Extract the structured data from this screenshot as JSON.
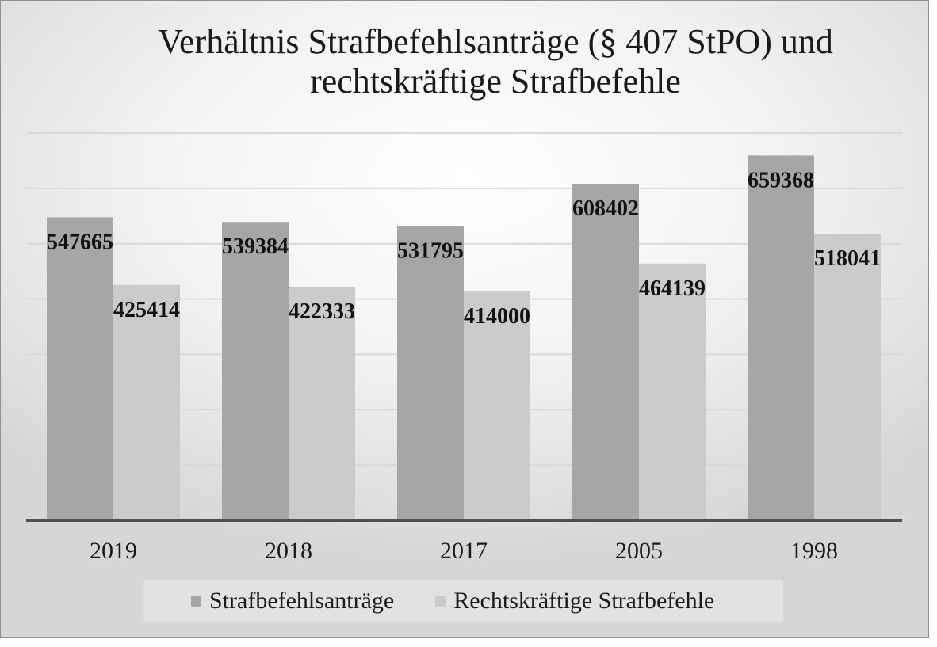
{
  "chart_data": {
    "type": "bar",
    "title": [
      "Verhältnis Strafbefehlsanträge (§ 407 StPO) und",
      "rechtskräftige Strafbefehle"
    ],
    "categories": [
      "2019",
      "2018",
      "2017",
      "2005",
      "1998"
    ],
    "series": [
      {
        "name": "Strafbefehlsanträge",
        "values": [
          547665,
          539384,
          531795,
          608402,
          659368
        ],
        "color": "#a6a6a6"
      },
      {
        "name": "Rechtskräftige Strafbefehle",
        "values": [
          425414,
          422333,
          414000,
          464139,
          518041
        ],
        "color": "#cbcbcb"
      }
    ],
    "xlabel": "",
    "ylabel": "",
    "ylim": [
      0,
      700000
    ],
    "grid": true,
    "legend": "bottom",
    "data_labels": true
  }
}
